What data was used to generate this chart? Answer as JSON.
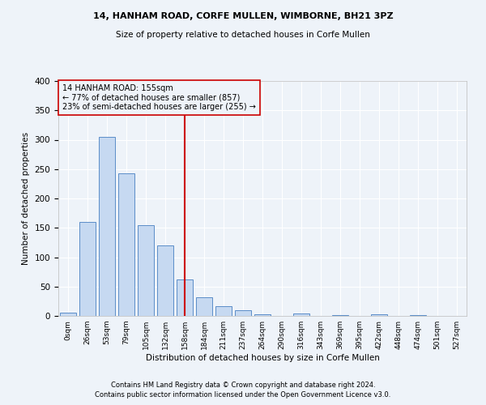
{
  "title1": "14, HANHAM ROAD, CORFE MULLEN, WIMBORNE, BH21 3PZ",
  "title2": "Size of property relative to detached houses in Corfe Mullen",
  "xlabel": "Distribution of detached houses by size in Corfe Mullen",
  "ylabel": "Number of detached properties",
  "footnote1": "Contains HM Land Registry data © Crown copyright and database right 2024.",
  "footnote2": "Contains public sector information licensed under the Open Government Licence v3.0.",
  "bar_labels": [
    "0sqm",
    "26sqm",
    "53sqm",
    "79sqm",
    "105sqm",
    "132sqm",
    "158sqm",
    "184sqm",
    "211sqm",
    "237sqm",
    "264sqm",
    "290sqm",
    "316sqm",
    "343sqm",
    "369sqm",
    "395sqm",
    "422sqm",
    "448sqm",
    "474sqm",
    "501sqm",
    "527sqm"
  ],
  "bar_values": [
    5,
    160,
    305,
    243,
    155,
    120,
    62,
    32,
    16,
    9,
    3,
    0,
    4,
    0,
    2,
    0,
    3,
    0,
    2,
    0,
    0
  ],
  "bar_color": "#c6d9f1",
  "bar_edge_color": "#5b8dc8",
  "bg_color": "#eef3f9",
  "grid_color": "#ffffff",
  "annotation_line1": "14 HANHAM ROAD: 155sqm",
  "annotation_line2": "← 77% of detached houses are smaller (857)",
  "annotation_line3": "23% of semi-detached houses are larger (255) →",
  "vline_x": 6,
  "vline_color": "#cc0000",
  "annotation_box_color": "#cc0000",
  "ylim": [
    0,
    400
  ],
  "yticks": [
    0,
    50,
    100,
    150,
    200,
    250,
    300,
    350,
    400
  ]
}
